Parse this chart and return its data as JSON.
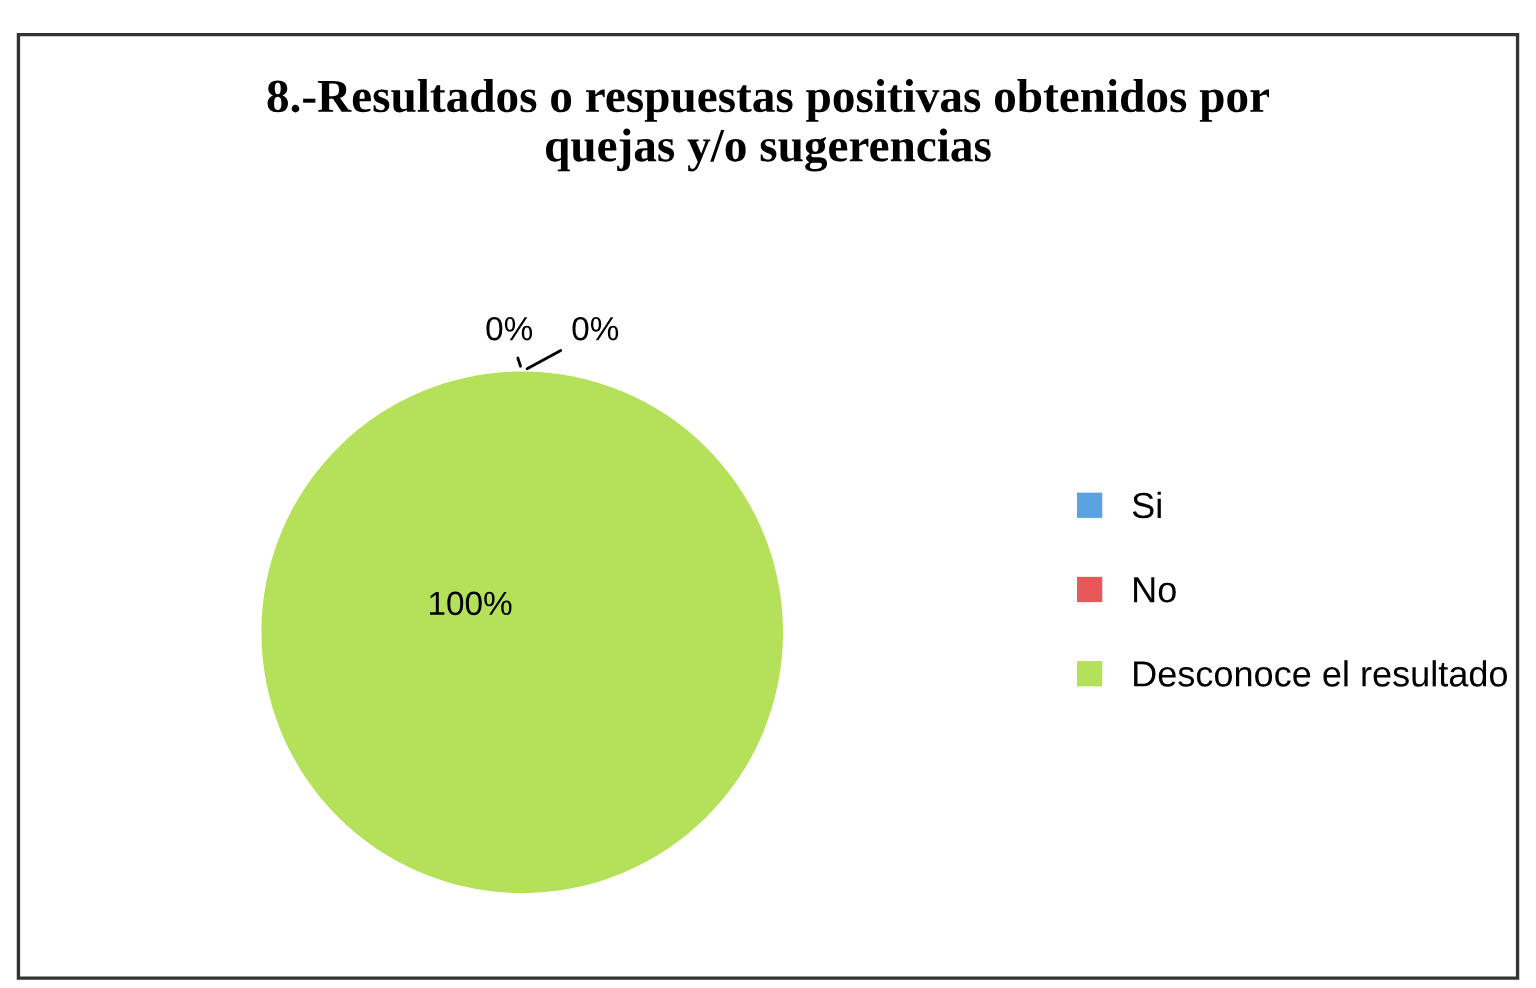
{
  "chart_data": {
    "type": "pie",
    "title": "8.-Resultados o respuestas positivas obtenidos por\nquejas y/o sugerencias",
    "categories": [
      "Si",
      "No",
      "Desconoce el resultado"
    ],
    "values": [
      0,
      0,
      100
    ],
    "colors": [
      "#5ba3e0",
      "#e8585a",
      "#b5e05a"
    ],
    "value_labels": [
      "0%",
      "0%",
      "100%"
    ],
    "legend": "right"
  }
}
